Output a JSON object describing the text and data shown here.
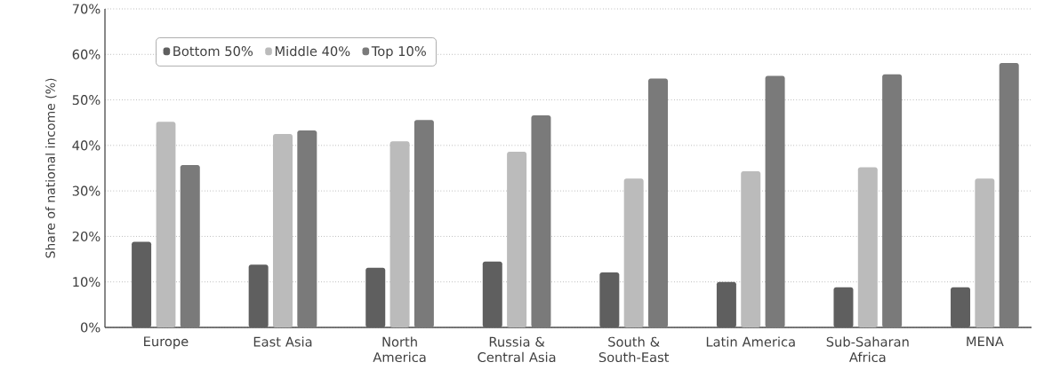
{
  "chart_data": {
    "type": "bar",
    "ylabel": "Share of national income (%)",
    "categories": [
      "Europe",
      "East Asia",
      "North America",
      "Russia & Central Asia",
      "South & South-East",
      "Latin America",
      "Sub-Saharan Africa",
      "MENA"
    ],
    "series": [
      {
        "name": "Bottom 50%",
        "color": "#5f5f5f",
        "values": [
          18.8,
          13.8,
          13.1,
          14.5,
          12.1,
          10.0,
          8.8,
          8.8
        ]
      },
      {
        "name": "Middle 40%",
        "color": "#bbbbbb",
        "values": [
          45.2,
          42.5,
          40.9,
          38.6,
          32.7,
          34.3,
          35.2,
          32.7
        ]
      },
      {
        "name": "Top 10%",
        "color": "#7a7a7a",
        "values": [
          35.7,
          43.3,
          45.6,
          46.6,
          54.7,
          55.3,
          55.6,
          58.1
        ]
      }
    ],
    "ylim": [
      0,
      70
    ],
    "yticks": [
      {
        "value": 0,
        "label": "0%"
      },
      {
        "value": 10,
        "label": "10%"
      },
      {
        "value": 20,
        "label": "20%"
      },
      {
        "value": 30,
        "label": "30%"
      },
      {
        "value": 40,
        "label": "40%"
      },
      {
        "value": 50,
        "label": "50%"
      },
      {
        "value": 60,
        "label": "60%"
      },
      {
        "value": 70,
        "label": "70%"
      }
    ],
    "grid": "y",
    "legend": "top left"
  }
}
